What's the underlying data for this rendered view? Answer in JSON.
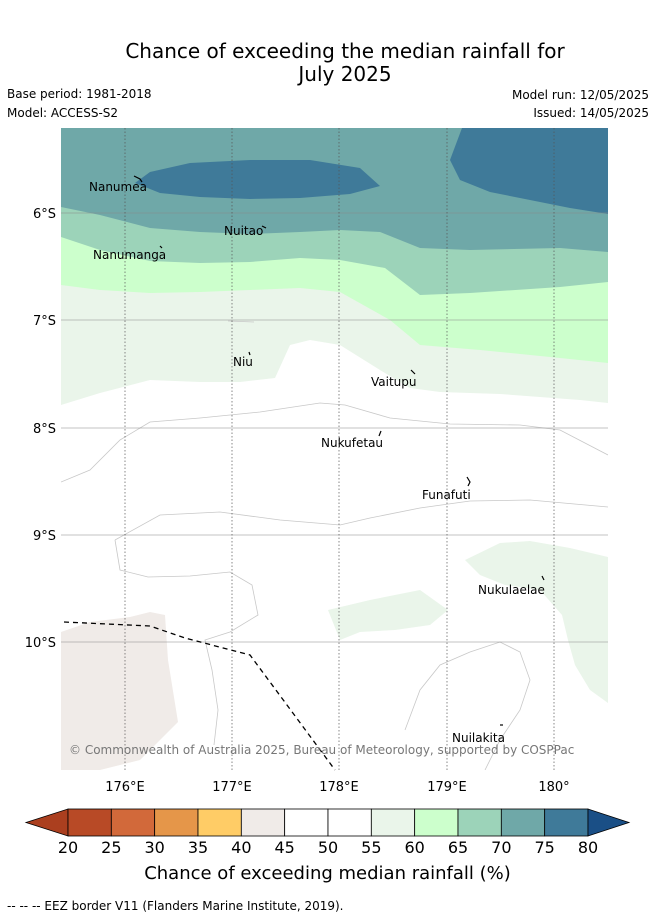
{
  "title_line1": "Chance of exceeding the median rainfall for",
  "title_line2": "July 2025",
  "base_period": "Base period: 1981-2018",
  "model": "Model: ACCESS-S2",
  "model_run": "Model run: 12/05/2025",
  "issued": "Issued: 14/05/2025",
  "copyright": "© Commonwealth of Australia 2025, Bureau of Meteorology, supported by COSPPac",
  "x_ticks": [
    "176°E",
    "177°E",
    "178°E",
    "179°E",
    "180°"
  ],
  "y_ticks": [
    "6°S",
    "7°S",
    "8°S",
    "9°S",
    "10°S"
  ],
  "places": [
    "Nanumea",
    "Nuitao",
    "Nanumanga",
    "Niu",
    "Vaitupu",
    "Nukufetau",
    "Funafuti",
    "Nukulaelae",
    "Nuilakita"
  ],
  "colorbar": {
    "labels": [
      "20",
      "25",
      "30",
      "35",
      "40",
      "45",
      "50",
      "55",
      "60",
      "65",
      "70",
      "75",
      "80"
    ],
    "colors": [
      "#ab3f1f",
      "#b84a26",
      "#d2693a",
      "#e59649",
      "#ffcc66",
      "#f0ebe8",
      "#ffffff",
      "#ffffff",
      "#eaf5ea",
      "#ccffcc",
      "#9cd3b9",
      "#6fa8a8",
      "#3f7a99",
      "#1a4f86"
    ],
    "title": "Chance of exceeding median rainfall (%)"
  },
  "footer": "--  --  -- EEZ border V11 (Flanders Marine Institute, 2019)."
}
